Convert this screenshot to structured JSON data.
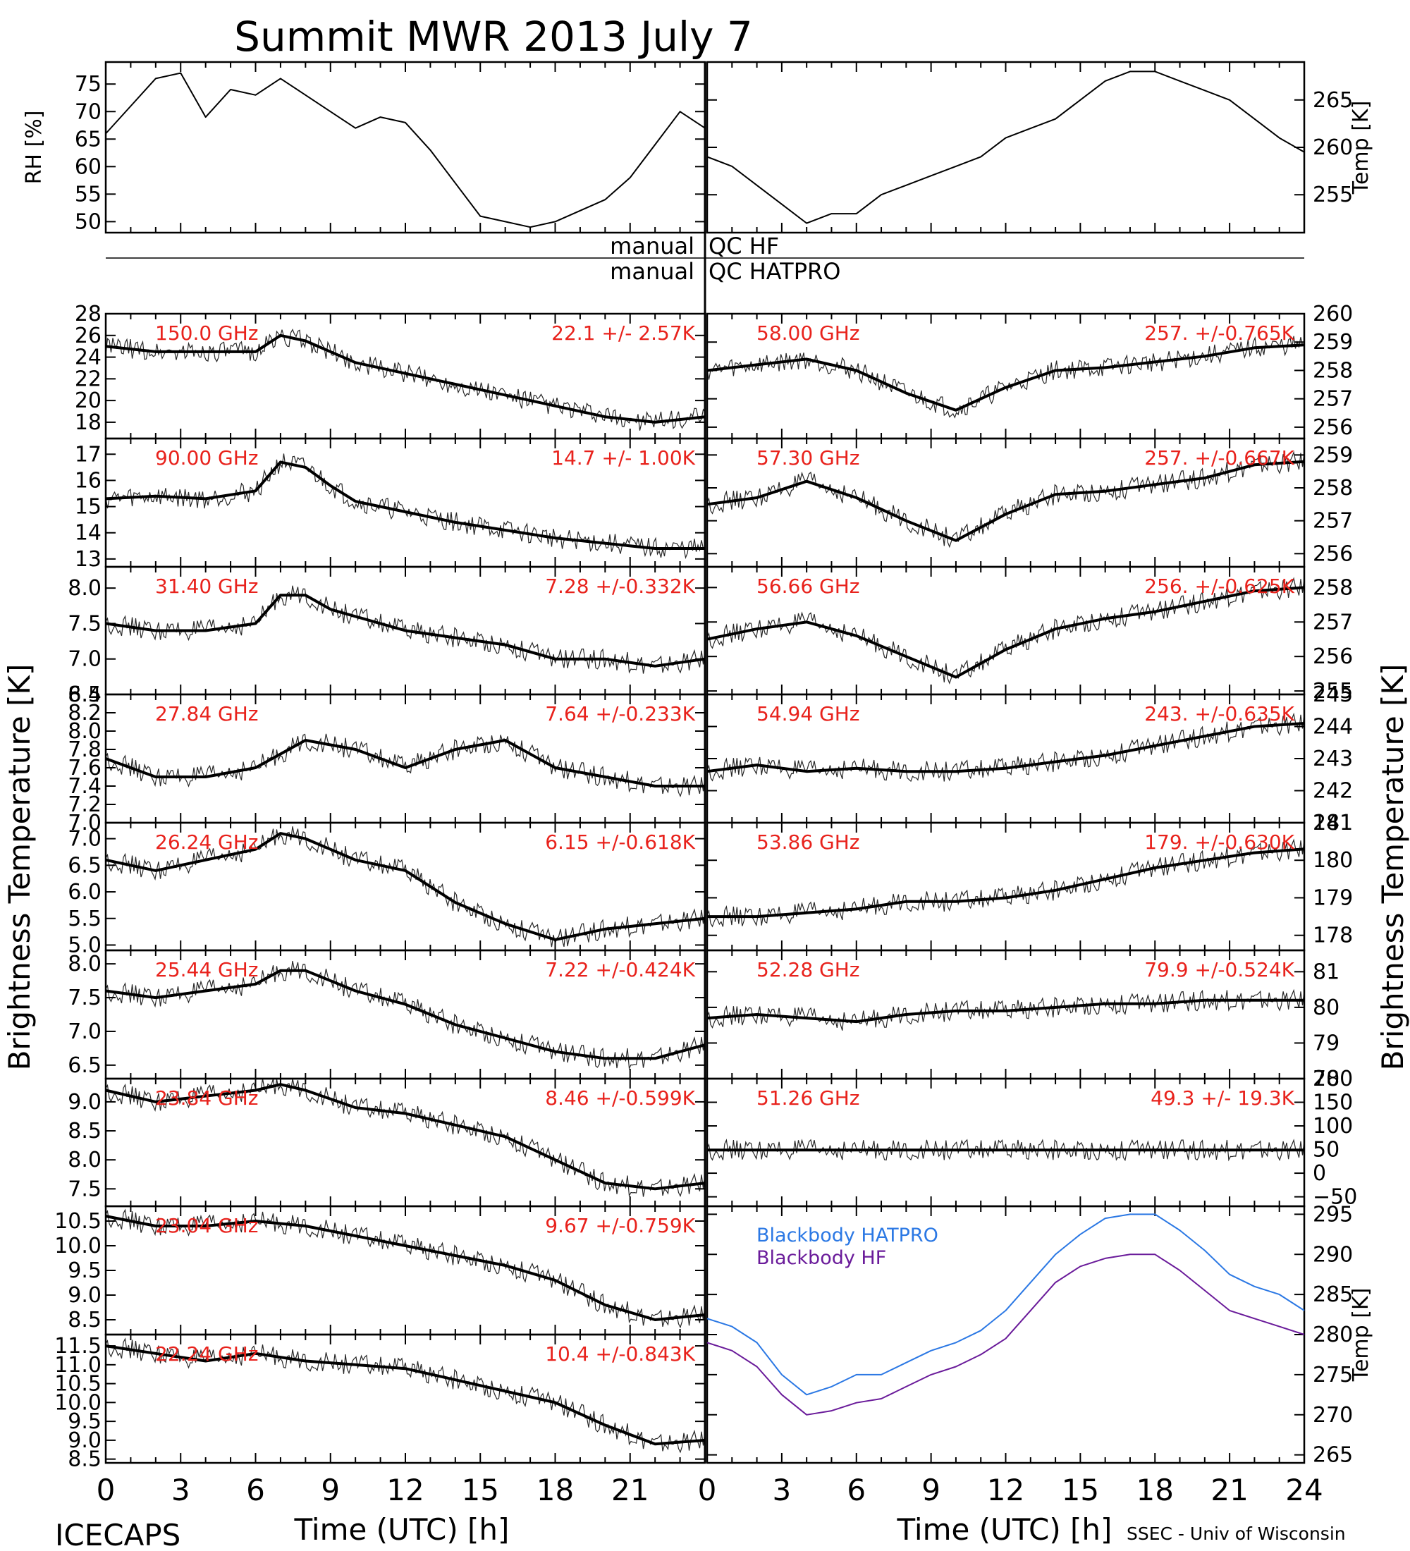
{
  "title": "Summit MWR 2013 July  7",
  "footer": {
    "left": "ICECAPS",
    "right": "SSEC - Univ of Wisconsin",
    "xlabel_left": "Time (UTC) [h]",
    "xlabel_right": "Time (UTC) [h]"
  },
  "side_labels": {
    "left": "Brightness Temperature [K]",
    "right": "Brightness Temperature [K]"
  },
  "qc": {
    "line1_left": "manual",
    "line1_right": "QC HF",
    "line2_left": "manual",
    "line2_right": "QC HATPRO"
  },
  "chart_data": [
    {
      "type": "line",
      "id": "rh",
      "ylabel": "RH [%]",
      "ylim": [
        48,
        79
      ],
      "yticks": [
        50,
        55,
        60,
        65,
        70,
        75
      ],
      "xlim": [
        0,
        24
      ],
      "x": [
        0,
        1,
        2,
        3,
        4,
        5,
        6,
        7,
        8,
        9,
        10,
        11,
        12,
        13,
        14,
        15,
        16,
        17,
        18,
        19,
        20,
        21,
        22,
        23,
        24
      ],
      "series": [
        {
          "values": [
            66,
            71,
            76,
            77,
            69,
            74,
            73,
            76,
            73,
            70,
            67,
            69,
            68,
            63,
            57,
            51,
            50,
            49,
            50,
            52,
            54,
            58,
            64,
            70,
            67
          ]
        }
      ]
    },
    {
      "type": "line",
      "id": "temp",
      "ylabel": "Temp [K]",
      "ylim": [
        251,
        269
      ],
      "yticks": [
        255,
        260,
        265
      ],
      "xlim": [
        0,
        24
      ],
      "x": [
        0,
        1,
        2,
        3,
        4,
        5,
        6,
        7,
        8,
        9,
        10,
        11,
        12,
        13,
        14,
        15,
        16,
        17,
        18,
        19,
        20,
        21,
        22,
        23,
        24
      ],
      "series": [
        {
          "values": [
            259,
            258,
            256,
            254,
            252,
            253,
            253,
            255,
            256,
            257,
            258,
            259,
            261,
            262,
            263,
            265,
            267,
            268,
            268,
            267,
            266,
            265,
            263,
            261,
            259.5
          ]
        }
      ]
    },
    {
      "type": "line",
      "id": "ch150",
      "freq": "150.0 GHz",
      "stat": "22.1 +/-  2.57K",
      "ylim": [
        16.5,
        28
      ],
      "yticks": [
        18,
        20,
        22,
        24,
        26,
        28
      ],
      "xlim": [
        0,
        24
      ],
      "x": [
        0,
        2,
        4,
        6,
        7,
        8,
        9,
        10,
        12,
        14,
        16,
        18,
        20,
        22,
        24
      ],
      "series": [
        {
          "values": [
            25,
            24.5,
            24.5,
            24.5,
            26,
            25.5,
            24.5,
            23.5,
            22.5,
            21.5,
            20.5,
            19.5,
            18.5,
            18,
            18.5
          ]
        }
      ]
    },
    {
      "type": "line",
      "id": "ch58",
      "freq": "58.00 GHz",
      "stat": "257. +/-0.765K",
      "ylim": [
        255.6,
        260
      ],
      "yticks": [
        256,
        257,
        258,
        259,
        260
      ],
      "xlim": [
        0,
        24
      ],
      "x": [
        0,
        2,
        4,
        6,
        8,
        10,
        12,
        14,
        16,
        18,
        20,
        22,
        24
      ],
      "series": [
        {
          "values": [
            258,
            258.2,
            258.4,
            258,
            257.2,
            256.6,
            257.4,
            258,
            258.1,
            258.3,
            258.5,
            258.8,
            258.9
          ]
        }
      ]
    },
    {
      "type": "line",
      "id": "ch90",
      "freq": "90.00 GHz",
      "stat": "14.7 +/-  1.00K",
      "ylim": [
        12.7,
        17.6
      ],
      "yticks": [
        13,
        14,
        15,
        16,
        17
      ],
      "xlim": [
        0,
        24
      ],
      "x": [
        0,
        2,
        4,
        6,
        7,
        8,
        9,
        10,
        12,
        14,
        16,
        18,
        20,
        22,
        24
      ],
      "series": [
        {
          "values": [
            15.3,
            15.4,
            15.3,
            15.6,
            16.7,
            16.5,
            15.8,
            15.2,
            14.8,
            14.4,
            14.1,
            13.8,
            13.6,
            13.4,
            13.4
          ]
        }
      ]
    },
    {
      "type": "line",
      "id": "ch5730",
      "freq": "57.30 GHz",
      "stat": "257. +/-0.667K",
      "ylim": [
        255.6,
        259.5
      ],
      "yticks": [
        256,
        257,
        258,
        259
      ],
      "xlim": [
        0,
        24
      ],
      "x": [
        0,
        2,
        4,
        6,
        8,
        10,
        12,
        14,
        16,
        18,
        20,
        22,
        24
      ],
      "series": [
        {
          "values": [
            257.5,
            257.7,
            258.2,
            257.7,
            257,
            256.4,
            257.2,
            257.8,
            257.9,
            258.1,
            258.3,
            258.7,
            258.8
          ]
        }
      ]
    },
    {
      "type": "line",
      "id": "ch3140",
      "freq": "31.40 GHz",
      "stat": "7.28 +/-0.332K",
      "ylim": [
        6.5,
        8.3
      ],
      "yticks": [
        6.5,
        7.0,
        7.5,
        8.0
      ],
      "xlim": [
        0,
        24
      ],
      "x": [
        0,
        2,
        4,
        6,
        7,
        8,
        9,
        10,
        12,
        14,
        16,
        18,
        20,
        22,
        24
      ],
      "series": [
        {
          "values": [
            7.5,
            7.4,
            7.4,
            7.5,
            7.9,
            7.9,
            7.7,
            7.6,
            7.4,
            7.3,
            7.2,
            7.0,
            7.0,
            6.9,
            7.0
          ]
        }
      ]
    },
    {
      "type": "line",
      "id": "ch5666",
      "freq": "56.66 GHz",
      "stat": "256. +/-0.625K",
      "ylim": [
        254.9,
        258.6
      ],
      "yticks": [
        255,
        256,
        257,
        258
      ],
      "xlim": [
        0,
        24
      ],
      "x": [
        0,
        2,
        4,
        6,
        8,
        10,
        12,
        14,
        16,
        18,
        20,
        22,
        24
      ],
      "series": [
        {
          "values": [
            256.5,
            256.8,
            257,
            256.6,
            256,
            255.4,
            256.2,
            256.8,
            257.1,
            257.3,
            257.6,
            257.9,
            258
          ]
        }
      ]
    },
    {
      "type": "line",
      "id": "ch2784",
      "freq": "27.84 GHz",
      "stat": "7.64 +/-0.233K",
      "ylim": [
        7.0,
        8.4
      ],
      "yticks": [
        7.0,
        7.2,
        7.4,
        7.6,
        7.8,
        8.0,
        8.2,
        8.4
      ],
      "xlim": [
        0,
        24
      ],
      "x": [
        0,
        2,
        4,
        6,
        8,
        10,
        12,
        14,
        16,
        18,
        20,
        22,
        24
      ],
      "series": [
        {
          "values": [
            7.7,
            7.5,
            7.5,
            7.6,
            7.9,
            7.8,
            7.6,
            7.8,
            7.9,
            7.6,
            7.5,
            7.4,
            7.4
          ]
        }
      ]
    },
    {
      "type": "line",
      "id": "ch5494",
      "freq": "54.94 GHz",
      "stat": "243. +/-0.635K",
      "ylim": [
        241,
        245
      ],
      "yticks": [
        241,
        242,
        243,
        244,
        245
      ],
      "xlim": [
        0,
        24
      ],
      "x": [
        0,
        2,
        4,
        6,
        8,
        10,
        12,
        14,
        16,
        18,
        20,
        22,
        24
      ],
      "series": [
        {
          "values": [
            242.6,
            242.8,
            242.6,
            242.7,
            242.6,
            242.6,
            242.7,
            242.9,
            243.1,
            243.4,
            243.7,
            244,
            244.1
          ]
        }
      ]
    },
    {
      "type": "line",
      "id": "ch2624",
      "freq": "26.24 GHz",
      "stat": "6.15 +/-0.618K",
      "ylim": [
        4.9,
        7.3
      ],
      "yticks": [
        5.0,
        5.5,
        6.0,
        6.5,
        7.0
      ],
      "xlim": [
        0,
        24
      ],
      "x": [
        0,
        2,
        4,
        6,
        7,
        8,
        10,
        12,
        14,
        16,
        18,
        20,
        22,
        24
      ],
      "series": [
        {
          "values": [
            6.6,
            6.4,
            6.6,
            6.8,
            7.1,
            7.0,
            6.6,
            6.4,
            5.8,
            5.4,
            5.1,
            5.3,
            5.4,
            5.5
          ]
        }
      ]
    },
    {
      "type": "line",
      "id": "ch5386",
      "freq": "53.86 GHz",
      "stat": "179. +/-0.630K",
      "ylim": [
        177.6,
        181
      ],
      "yticks": [
        178,
        179,
        180,
        181
      ],
      "xlim": [
        0,
        24
      ],
      "x": [
        0,
        2,
        4,
        6,
        8,
        10,
        12,
        14,
        16,
        18,
        20,
        22,
        24
      ],
      "series": [
        {
          "values": [
            178.5,
            178.5,
            178.6,
            178.7,
            178.9,
            178.9,
            179,
            179.2,
            179.5,
            179.8,
            180,
            180.2,
            180.3
          ]
        }
      ]
    },
    {
      "type": "line",
      "id": "ch2544",
      "freq": "25.44 GHz",
      "stat": "7.22 +/-0.424K",
      "ylim": [
        6.3,
        8.2
      ],
      "yticks": [
        6.5,
        7.0,
        7.5,
        8.0
      ],
      "xlim": [
        0,
        24
      ],
      "x": [
        0,
        2,
        4,
        6,
        7,
        8,
        10,
        12,
        14,
        16,
        18,
        20,
        22,
        24
      ],
      "series": [
        {
          "values": [
            7.6,
            7.5,
            7.6,
            7.7,
            7.9,
            7.9,
            7.6,
            7.4,
            7.1,
            6.9,
            6.7,
            6.6,
            6.6,
            6.8
          ]
        }
      ]
    },
    {
      "type": "line",
      "id": "ch5228",
      "freq": "52.28 GHz",
      "stat": "79.9 +/-0.524K",
      "ylim": [
        78,
        81.6
      ],
      "yticks": [
        78,
        79,
        80,
        81
      ],
      "xlim": [
        0,
        24
      ],
      "x": [
        0,
        2,
        4,
        6,
        8,
        10,
        12,
        14,
        16,
        18,
        20,
        22,
        24
      ],
      "series": [
        {
          "values": [
            79.7,
            79.8,
            79.7,
            79.6,
            79.8,
            79.9,
            79.9,
            80,
            80.1,
            80.1,
            80.2,
            80.2,
            80.2
          ]
        }
      ]
    },
    {
      "type": "line",
      "id": "ch2384",
      "freq": "23.84 GHz",
      "stat": "8.46 +/-0.599K",
      "ylim": [
        7.2,
        9.4
      ],
      "yticks": [
        7.5,
        8.0,
        8.5,
        9.0
      ],
      "xlim": [
        0,
        24
      ],
      "x": [
        0,
        2,
        4,
        6,
        7,
        8,
        10,
        12,
        14,
        16,
        18,
        20,
        22,
        24
      ],
      "series": [
        {
          "values": [
            9.2,
            9.0,
            9.1,
            9.2,
            9.3,
            9.2,
            8.9,
            8.8,
            8.6,
            8.4,
            8.0,
            7.6,
            7.5,
            7.6
          ]
        }
      ]
    },
    {
      "type": "line",
      "id": "ch5126",
      "freq": "51.26 GHz",
      "stat": "49.3 +/- 19.3K",
      "ylim": [
        -70,
        200
      ],
      "yticks": [
        -50,
        0,
        50,
        100,
        150,
        200
      ],
      "xlim": [
        0,
        24
      ],
      "x": [
        0,
        4,
        8,
        12,
        16,
        20,
        24
      ],
      "series": [
        {
          "values": [
            49,
            49,
            49,
            49,
            49,
            49,
            49
          ]
        }
      ]
    },
    {
      "type": "line",
      "id": "ch2304",
      "freq": "23.04 GHz",
      "stat": "9.67 +/-0.759K",
      "ylim": [
        8.2,
        10.8
      ],
      "yticks": [
        8.5,
        9.0,
        9.5,
        10.0,
        10.5
      ],
      "xlim": [
        0,
        24
      ],
      "x": [
        0,
        2,
        4,
        6,
        8,
        10,
        12,
        14,
        16,
        18,
        20,
        22,
        24
      ],
      "series": [
        {
          "values": [
            10.6,
            10.4,
            10.4,
            10.5,
            10.4,
            10.2,
            10.0,
            9.8,
            9.6,
            9.3,
            8.8,
            8.5,
            8.6
          ]
        }
      ]
    },
    {
      "type": "line",
      "id": "blackbody",
      "ylabel": "Temp [K]",
      "ylim": [
        264,
        296
      ],
      "yticks": [
        265,
        270,
        275,
        280,
        285,
        290,
        295
      ],
      "xlim": [
        0,
        24
      ],
      "x": [
        0,
        1,
        2,
        3,
        4,
        5,
        6,
        7,
        8,
        9,
        10,
        11,
        12,
        13,
        14,
        15,
        16,
        17,
        18,
        19,
        20,
        21,
        22,
        23,
        24
      ],
      "series": [
        {
          "name": "Blackbody HATPRO",
          "color": "#2b78e4",
          "values": [
            282,
            281,
            279,
            275,
            272.5,
            273.5,
            275,
            275,
            276.5,
            278,
            279,
            280.5,
            283,
            286.5,
            290,
            292.5,
            294.5,
            295,
            295,
            293,
            290.5,
            287.5,
            286,
            285,
            283
          ]
        },
        {
          "name": "Blackbody HF",
          "color": "#6a1b9a",
          "values": [
            279,
            278,
            276,
            272.5,
            270,
            270.5,
            271.5,
            272,
            273.5,
            275,
            276,
            277.5,
            279.5,
            283,
            286.5,
            288.5,
            289.5,
            290,
            290,
            288,
            285.5,
            283,
            282,
            281,
            280
          ]
        }
      ]
    },
    {
      "type": "line",
      "id": "ch2224",
      "freq": "22.24 GHz",
      "stat": "10.4 +/-0.843K",
      "ylim": [
        8.4,
        11.8
      ],
      "yticks": [
        8.5,
        9.0,
        9.5,
        10.0,
        10.5,
        11.0,
        11.5
      ],
      "xlim": [
        0,
        24
      ],
      "x": [
        0,
        2,
        4,
        6,
        8,
        10,
        12,
        14,
        16,
        18,
        20,
        22,
        24
      ],
      "series": [
        {
          "values": [
            11.5,
            11.3,
            11.1,
            11.3,
            11.1,
            11.0,
            10.9,
            10.6,
            10.3,
            10.0,
            9.4,
            8.9,
            9.0
          ]
        }
      ]
    }
  ],
  "xticks": [
    "0",
    "3",
    "6",
    "9",
    "12",
    "15",
    "18",
    "21",
    "0",
    "3",
    "6",
    "9",
    "12",
    "15",
    "18",
    "21",
    "24"
  ]
}
